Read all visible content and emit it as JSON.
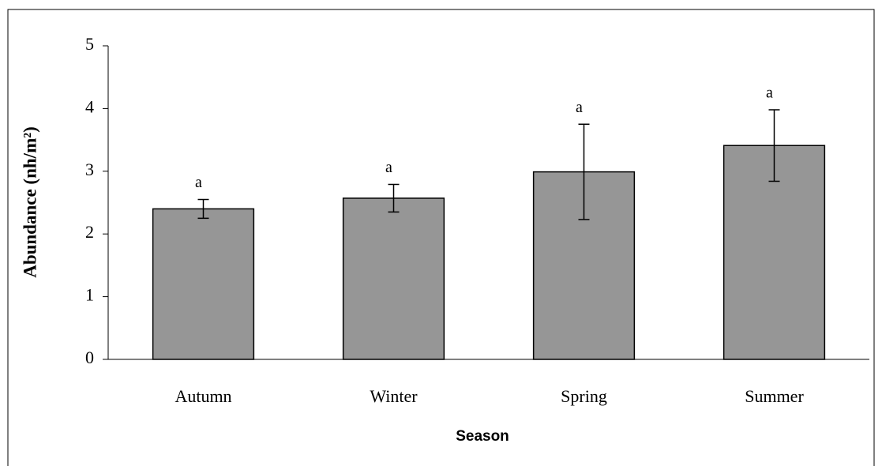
{
  "chart_data": {
    "type": "bar",
    "x_label": "Season",
    "y_label": "Abundance (nh/m²)",
    "categories": [
      "Autumn",
      "Winter",
      "Spring",
      "Summer"
    ],
    "values": [
      2.4,
      2.57,
      2.99,
      3.41
    ],
    "errors": [
      0.15,
      0.22,
      0.76,
      0.57
    ],
    "significance_labels": [
      "a",
      "a",
      "a",
      "a"
    ],
    "color": "#969696",
    "ylim": [
      0,
      5
    ],
    "yticks": [
      0,
      1,
      2,
      3,
      4,
      5
    ],
    "grid": false
  }
}
